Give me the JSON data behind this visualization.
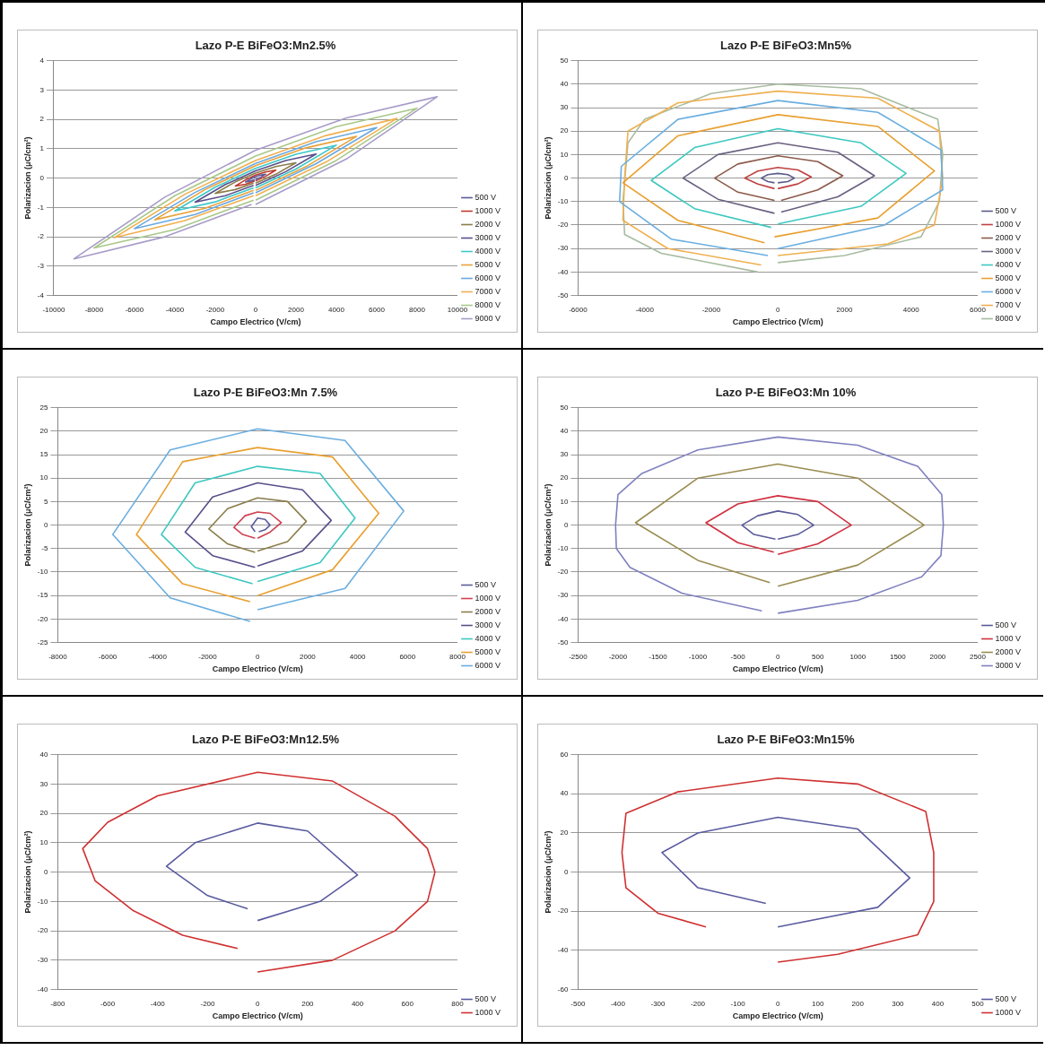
{
  "chart_data": [
    {
      "type": "line",
      "title": "Lazo P-E BiFeO3:Mn2.5%",
      "xlabel": "Campo Electrico (V/cm)",
      "ylabel": "Polarizacion (μC/cm²)",
      "xlim": [
        -10000,
        10000
      ],
      "xticks": [
        -10000,
        -8000,
        -6000,
        -4000,
        -2000,
        0,
        2000,
        4000,
        6000,
        8000,
        10000
      ],
      "ylim": [
        -4,
        4
      ],
      "yticks": [
        -4,
        -3,
        -2,
        -1,
        0,
        1,
        2,
        3,
        4
      ],
      "grid": "y",
      "legend": "right",
      "marker": "none",
      "line_style": "solid",
      "series": [
        {
          "name": "500 V",
          "color": "#5b5b9b",
          "x": [
            -25,
            -250,
            -500,
            -250,
            0,
            250,
            500,
            250,
            0
          ],
          "values": [
            -0.05,
            -0.1,
            -0.13,
            -0.03,
            0.05,
            0.1,
            0.13,
            0.03,
            -0.05
          ]
        },
        {
          "name": "1000 V",
          "color": "#c0392b",
          "x": [
            -50,
            -500,
            -1000,
            -500,
            0,
            500,
            1000,
            500,
            0
          ],
          "values": [
            -0.1,
            -0.21,
            -0.27,
            -0.06,
            0.1,
            0.21,
            0.27,
            0.06,
            -0.1
          ]
        },
        {
          "name": "2000 V",
          "color": "#8b7d4b",
          "x": [
            -100,
            -1000,
            -2000,
            -1000,
            0,
            1000,
            2000,
            1000,
            0
          ],
          "values": [
            -0.17,
            -0.39,
            -0.52,
            -0.13,
            0.17,
            0.39,
            0.52,
            0.13,
            -0.17
          ]
        },
        {
          "name": "3000 V",
          "color": "#5a4f8a",
          "x": [
            -100,
            -1500,
            -3000,
            -1500,
            0,
            1500,
            3000,
            1500,
            0
          ],
          "values": [
            -0.25,
            -0.6,
            -0.82,
            -0.22,
            0.25,
            0.6,
            0.82,
            0.22,
            -0.25
          ]
        },
        {
          "name": "4000 V",
          "color": "#3cc8c8",
          "x": [
            -100,
            -2000,
            -4000,
            -2000,
            0,
            2000,
            4000,
            2000,
            0
          ],
          "values": [
            -0.33,
            -0.81,
            -1.12,
            -0.31,
            0.33,
            0.81,
            1.12,
            0.31,
            -0.33
          ]
        },
        {
          "name": "5000 V",
          "color": "#e8a23a",
          "x": [
            -100,
            -2500,
            -5000,
            -2500,
            0,
            2500,
            5000,
            2500,
            0
          ],
          "values": [
            -0.42,
            -1.03,
            -1.42,
            -0.39,
            0.42,
            1.03,
            1.42,
            0.39,
            -0.42
          ]
        },
        {
          "name": "6000 V",
          "color": "#6aa8e0",
          "x": [
            -100,
            -3000,
            -6000,
            -3000,
            0,
            3000,
            6000,
            3000,
            0
          ],
          "values": [
            -0.5,
            -1.24,
            -1.72,
            -0.49,
            0.5,
            1.24,
            1.72,
            0.49,
            -0.5
          ]
        },
        {
          "name": "7000 V",
          "color": "#f0b050",
          "x": [
            -100,
            -3500,
            -7000,
            -3500,
            0,
            3500,
            7000,
            3500,
            0
          ],
          "values": [
            -0.6,
            -1.45,
            -2.03,
            -0.55,
            0.6,
            1.45,
            2.03,
            0.55,
            -0.6
          ]
        },
        {
          "name": "8000 V",
          "color": "#a8c88a",
          "x": [
            -100,
            -4000,
            -8000,
            -4000,
            0,
            4000,
            8000,
            4000,
            0
          ],
          "values": [
            -0.75,
            -1.75,
            -2.38,
            -0.6,
            0.75,
            1.75,
            2.38,
            0.6,
            -0.75
          ]
        },
        {
          "name": "9000 V",
          "color": "#a89cc8",
          "x": [
            -200,
            -4500,
            -9000,
            -4500,
            0,
            4500,
            9000,
            4500,
            0
          ],
          "values": [
            -0.9,
            -2.0,
            -2.75,
            -0.65,
            0.95,
            2.05,
            2.77,
            0.65,
            -0.9
          ]
        }
      ]
    },
    {
      "type": "line",
      "title": "Lazo P-E BiFeO3:Mn5%",
      "xlabel": "Campo Electrico (V/cm)",
      "ylabel": "Polarizacion (μC/cm²)",
      "xlim": [
        -6000,
        6000
      ],
      "xticks": [
        -6000,
        -4000,
        -2000,
        0,
        2000,
        4000,
        6000
      ],
      "ylim": [
        -50,
        50
      ],
      "yticks": [
        -50,
        -40,
        -30,
        -20,
        -10,
        0,
        10,
        20,
        30,
        40,
        50
      ],
      "grid": "y",
      "legend": "right",
      "marker": "none",
      "line_style": "solid",
      "series": [
        {
          "name": "500 V",
          "color": "#5b5b8b",
          "x": [
            -100,
            -300,
            -500,
            -300,
            0,
            300,
            500,
            300,
            0
          ],
          "values": [
            -2,
            -1.5,
            0,
            1.5,
            2,
            1.5,
            0,
            -1.5,
            -2
          ]
        },
        {
          "name": "1000 V",
          "color": "#c04040",
          "x": [
            -100,
            -600,
            -1000,
            -600,
            0,
            600,
            1000,
            600,
            0
          ],
          "values": [
            -4.5,
            -2.5,
            0,
            3,
            4.5,
            3.5,
            0.5,
            -2.5,
            -4.5
          ]
        },
        {
          "name": "2000 V",
          "color": "#8b5a4a",
          "x": [
            -100,
            -1200,
            -1900,
            -1200,
            0,
            1200,
            1950,
            1200,
            100
          ],
          "values": [
            -9.5,
            -6,
            0,
            6,
            9.5,
            7,
            1,
            -5,
            -9.5
          ]
        },
        {
          "name": "3000 V",
          "color": "#6a6080",
          "x": [
            -100,
            -1800,
            -2850,
            -1800,
            0,
            1800,
            2900,
            1800,
            100
          ],
          "values": [
            -15,
            -9,
            0,
            10,
            15,
            11,
            1,
            -8,
            -14.5
          ]
        },
        {
          "name": "4000 V",
          "color": "#3cc8c0",
          "x": [
            -200,
            -2500,
            -3800,
            -2500,
            0,
            2500,
            3850,
            2500,
            0
          ],
          "values": [
            -21,
            -13,
            -1,
            13,
            21,
            15,
            2,
            -12,
            -19.5
          ]
        },
        {
          "name": "5000 V",
          "color": "#e8a030",
          "x": [
            -400,
            -3000,
            -4650,
            -3000,
            0,
            3000,
            4700,
            3000,
            -100
          ],
          "values": [
            -27.5,
            -18,
            -2,
            18,
            27,
            22,
            3,
            -17,
            -25
          ]
        },
        {
          "name": "6000 V",
          "color": "#6aaee0",
          "x": [
            -300,
            -3200,
            -4750,
            -4700,
            -3000,
            0,
            3000,
            4900,
            4950,
            3200,
            0
          ],
          "values": [
            -33,
            -26,
            -10,
            5,
            25,
            33,
            28,
            12,
            -5,
            -20,
            -30
          ]
        },
        {
          "name": "7000 V",
          "color": "#f0b050",
          "x": [
            -500,
            -3300,
            -4650,
            -4600,
            -4500,
            -3000,
            0,
            3000,
            4850,
            4950,
            4700,
            3300,
            0
          ],
          "values": [
            -37,
            -30,
            -18,
            0,
            20,
            32,
            37,
            34,
            20,
            0,
            -20,
            -28,
            -33
          ]
        },
        {
          "name": "8000 V",
          "color": "#a8bca0",
          "x": [
            -600,
            -3500,
            -4600,
            -4650,
            -4500,
            -4000,
            -2000,
            0,
            2500,
            4800,
            4950,
            4850,
            4300,
            2000,
            0
          ],
          "values": [
            -40,
            -32,
            -24,
            -10,
            15,
            25,
            36,
            40,
            38,
            25,
            10,
            -10,
            -25,
            -33,
            -36
          ]
        }
      ]
    },
    {
      "type": "line",
      "title": "Lazo P-E BiFeO3:Mn 7.5%",
      "xlabel": "Campo Electrico (V/cm)",
      "ylabel": "Polarizacion (μC/cm²)",
      "xlim": [
        -8000,
        8000
      ],
      "xticks": [
        -8000,
        -6000,
        -4000,
        -2000,
        0,
        2000,
        4000,
        6000,
        8000
      ],
      "ylim": [
        -25,
        25
      ],
      "yticks": [
        -25,
        -20,
        -15,
        -10,
        -5,
        0,
        5,
        10,
        15,
        20,
        25
      ],
      "grid": "y",
      "legend": "right",
      "marker": "none",
      "line_style": "solid",
      "series": [
        {
          "name": "500 V",
          "color": "#5b5b9b",
          "x": [
            -100,
            -250,
            0,
            300,
            500,
            300,
            50
          ],
          "values": [
            -1.4,
            -0.3,
            1.5,
            1.2,
            0,
            -1,
            -1.4
          ]
        },
        {
          "name": "1000 V",
          "color": "#d04050",
          "x": [
            -100,
            -600,
            -950,
            -500,
            0,
            500,
            950,
            500,
            0
          ],
          "values": [
            -2.8,
            -2,
            -0.5,
            2,
            2.8,
            2.5,
            0.5,
            -1.5,
            -2.8
          ]
        },
        {
          "name": "2000 V",
          "color": "#8b7d4b",
          "x": [
            -100,
            -1200,
            -1950,
            -1200,
            0,
            1200,
            1950,
            1200,
            0
          ],
          "values": [
            -5.8,
            -4,
            -0.8,
            3.5,
            5.8,
            5,
            0.8,
            -3.5,
            -5.5
          ]
        },
        {
          "name": "3000 V",
          "color": "#5a4f8a",
          "x": [
            -100,
            -1800,
            -2900,
            -1800,
            0,
            1800,
            2950,
            1800,
            0
          ],
          "values": [
            -9,
            -6.5,
            -1.5,
            6,
            9,
            7.5,
            1,
            -5.5,
            -8.7
          ]
        },
        {
          "name": "4000 V",
          "color": "#3cc8c0",
          "x": [
            -200,
            -2500,
            -3850,
            -2500,
            0,
            2500,
            3900,
            2500,
            0
          ],
          "values": [
            -12.5,
            -9,
            -2,
            9,
            12.5,
            11,
            1.5,
            -8,
            -12
          ]
        },
        {
          "name": "5000 V",
          "color": "#e8a030",
          "x": [
            -300,
            -3000,
            -4850,
            -3000,
            0,
            3000,
            4850,
            3000,
            0
          ],
          "values": [
            -16.3,
            -12.5,
            -2,
            13.5,
            16.5,
            14.5,
            2.5,
            -9.5,
            -15
          ]
        },
        {
          "name": "6000 V",
          "color": "#6aaee0",
          "x": [
            -300,
            -3500,
            -5800,
            -3500,
            0,
            3500,
            5850,
            3500,
            0
          ],
          "values": [
            -20.5,
            -15.5,
            -2,
            16,
            20.5,
            18,
            3,
            -13.5,
            -18
          ]
        }
      ]
    },
    {
      "type": "line",
      "title": "Lazo P-E BiFeO3:Mn 10%",
      "xlabel": "Campo Electrico (V/cm)",
      "ylabel": "Polarizacion (μC/cm²)",
      "xlim": [
        -2500,
        2500
      ],
      "xticks": [
        -2500,
        -2000,
        -1500,
        -1000,
        -500,
        0,
        500,
        1000,
        1500,
        2000,
        2500
      ],
      "ylim": [
        -50,
        50
      ],
      "yticks": [
        -50,
        -40,
        -30,
        -20,
        -10,
        0,
        10,
        20,
        30,
        40,
        50
      ],
      "grid": "y",
      "legend": "right",
      "marker": "none",
      "line_style": "solid",
      "series": [
        {
          "name": "500 V",
          "color": "#5a5a9a",
          "x": [
            -30,
            -300,
            -450,
            -250,
            0,
            250,
            450,
            250,
            0
          ],
          "values": [
            -6,
            -4,
            0,
            4,
            6,
            4.5,
            0,
            -4,
            -6
          ]
        },
        {
          "name": "1000 V",
          "color": "#d03040",
          "x": [
            -50,
            -500,
            -900,
            -500,
            0,
            500,
            920,
            500,
            0
          ],
          "values": [
            -11.5,
            -7.5,
            1,
            9,
            12.5,
            10,
            0,
            -8,
            -12.5
          ]
        },
        {
          "name": "2000 V",
          "color": "#9a8c50",
          "x": [
            -100,
            -1000,
            -1780,
            -1000,
            0,
            1000,
            1830,
            1000,
            0
          ],
          "values": [
            -24.5,
            -15,
            1,
            20,
            26,
            20,
            0,
            -17,
            -26
          ]
        },
        {
          "name": "3000 V",
          "color": "#8080c0",
          "x": [
            -200,
            -1200,
            -1850,
            -2020,
            -2030,
            -2000,
            -1700,
            -1000,
            0,
            1000,
            1750,
            2050,
            2070,
            2040,
            1800,
            1000,
            0
          ],
          "values": [
            -36.5,
            -29,
            -18,
            -10,
            0,
            13,
            22,
            32,
            37.5,
            34,
            25,
            13,
            0,
            -13,
            -22,
            -32,
            -37.5
          ]
        }
      ]
    },
    {
      "type": "line",
      "title": "Lazo P-E BiFeO3:Mn12.5%",
      "xlabel": "Campo Electrico (V/cm)",
      "ylabel": "Polarizacion (μC/cm²)",
      "xlim": [
        -800,
        800
      ],
      "xticks": [
        -800,
        -600,
        -400,
        -200,
        0,
        200,
        400,
        600,
        800
      ],
      "ylim": [
        -40,
        40
      ],
      "yticks": [
        -40,
        -30,
        -20,
        -10,
        0,
        10,
        20,
        30,
        40
      ],
      "grid": "y",
      "legend": "right",
      "marker": "none",
      "line_style": "solid",
      "series": [
        {
          "name": "500 V",
          "color": "#5a5aa0",
          "x": [
            -40,
            -200,
            -365,
            -250,
            0,
            200,
            400,
            250,
            0
          ],
          "values": [
            -12.5,
            -8,
            2,
            10,
            16.7,
            14,
            -1,
            -10,
            -16.5
          ]
        },
        {
          "name": "1000 V",
          "color": "#d03030",
          "x": [
            -80,
            -300,
            -500,
            -650,
            -700,
            -600,
            -400,
            0,
            300,
            550,
            680,
            710,
            680,
            550,
            300,
            0
          ],
          "values": [
            -26,
            -21.5,
            -13,
            -3,
            8,
            17,
            26,
            34,
            31,
            19,
            8,
            0,
            -10,
            -20,
            -30,
            -34
          ]
        }
      ]
    },
    {
      "type": "line",
      "title": "Lazo P-E BiFeO3:Mn15%",
      "xlabel": "Campo Electrico (V/cm)",
      "ylabel": "Polarizacion (μC/cm²)",
      "xlim": [
        -500,
        500
      ],
      "xticks": [
        -500,
        -400,
        -300,
        -200,
        -100,
        0,
        100,
        200,
        300,
        400,
        500
      ],
      "ylim": [
        -60,
        60
      ],
      "yticks": [
        -60,
        -40,
        -20,
        0,
        20,
        40,
        60
      ],
      "grid": "y",
      "legend": "right",
      "marker": "none",
      "line_style": "solid",
      "series": [
        {
          "name": "500 V",
          "color": "#5a5aa0",
          "x": [
            -30,
            -200,
            -290,
            -200,
            0,
            200,
            330,
            250,
            0
          ],
          "values": [
            -16,
            -8,
            10,
            20,
            28,
            22,
            -3,
            -18,
            -28
          ]
        },
        {
          "name": "1000 V",
          "color": "#d03030",
          "x": [
            -180,
            -300,
            -380,
            -390,
            -380,
            -250,
            0,
            200,
            370,
            390,
            390,
            350,
            150,
            0
          ],
          "values": [
            -28,
            -21,
            -8,
            10,
            30,
            41,
            48,
            45,
            31,
            10,
            -15,
            -32,
            -42,
            -46
          ]
        }
      ]
    }
  ]
}
